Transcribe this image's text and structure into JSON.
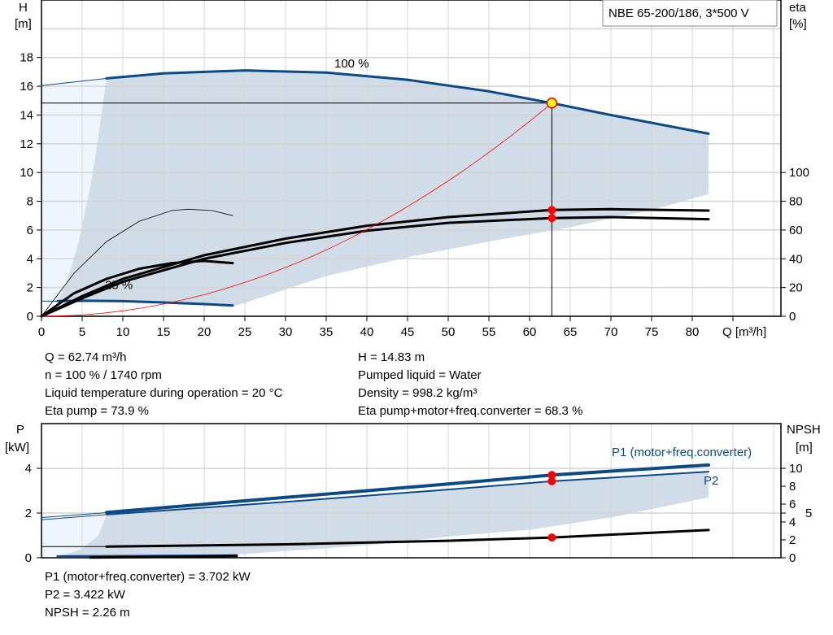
{
  "chart_data": [
    {
      "type": "line",
      "title": "NBE 65-200/186, 3*500 V",
      "xlabel": "Q [m³/h]",
      "ylabel_top": "H",
      "ylabel_unit": "[m]",
      "y2label_top": "eta",
      "y2label_unit": "[%]",
      "xlim": [
        0,
        90.9
      ],
      "ylim": [
        0,
        22
      ],
      "y2lim": [
        0,
        220
      ],
      "grid": true,
      "xticks": [
        "0",
        "5",
        "10",
        "15",
        "20",
        "25",
        "30",
        "35",
        "40",
        "45",
        "50",
        "55",
        "60",
        "65",
        "70",
        "75",
        "80"
      ],
      "yticks": [
        "0",
        "2",
        "4",
        "6",
        "8",
        "10",
        "12",
        "14",
        "16",
        "18"
      ],
      "y2ticks": [
        "0",
        "20",
        "40",
        "60",
        "80",
        "100"
      ],
      "speed_labels": [
        {
          "text": "100 %",
          "x": 36,
          "y": 17.3
        },
        {
          "text": "25 %",
          "x": 7.8,
          "y": 1.9
        }
      ],
      "series": [
        {
          "id": "h100",
          "thin": [
            [
              0,
              16.05
            ],
            [
              8,
              16.55
            ]
          ],
          "points": [
            [
              8,
              16.55
            ],
            [
              15,
              16.9
            ],
            [
              25,
              17.1
            ],
            [
              35,
              16.95
            ],
            [
              45,
              16.45
            ],
            [
              55,
              15.65
            ],
            [
              62.74,
              14.83
            ],
            [
              70,
              14.0
            ],
            [
              82,
              12.7
            ]
          ],
          "color": "#0b4a86"
        },
        {
          "id": "h25",
          "thin": [
            [
              0,
              1.05
            ],
            [
              2,
              1.05
            ]
          ],
          "points": [
            [
              2,
              1.06
            ],
            [
              5,
              1.08
            ],
            [
              10,
              1.05
            ],
            [
              15,
              0.96
            ],
            [
              20,
              0.85
            ],
            [
              23.5,
              0.75
            ]
          ],
          "color": "#0b4a86"
        },
        {
          "id": "eta-pump",
          "axis": "eta",
          "points": [
            [
              0,
              0
            ],
            [
              5,
              14
            ],
            [
              10,
              26
            ],
            [
              20,
              42.5
            ],
            [
              30,
              54
            ],
            [
              40,
              63
            ],
            [
              50,
              69
            ],
            [
              62.74,
              73.9
            ],
            [
              70,
              74.5
            ],
            [
              82,
              73.5
            ]
          ],
          "color": "#000000"
        },
        {
          "id": "eta-total",
          "axis": "eta",
          "points": [
            [
              0,
              0
            ],
            [
              5,
              12.5
            ],
            [
              10,
              24
            ],
            [
              20,
              40
            ],
            [
              30,
              51
            ],
            [
              40,
              59.5
            ],
            [
              50,
              65
            ],
            [
              62.74,
              68.3
            ],
            [
              70,
              69
            ],
            [
              82,
              67.5
            ]
          ],
          "color": "#000000"
        },
        {
          "id": "eta-pump-25",
          "axis": "eta",
          "thin": true,
          "points": [
            [
              0,
              0
            ],
            [
              4,
              30
            ],
            [
              8,
              52
            ],
            [
              12,
              66
            ],
            [
              16,
              73.5
            ],
            [
              18,
              74.5
            ],
            [
              21,
              73.5
            ],
            [
              23.5,
              70
            ]
          ],
          "color": "#000000"
        },
        {
          "id": "eta-total-25",
          "axis": "eta",
          "points": [
            [
              0,
              0
            ],
            [
              4,
              16
            ],
            [
              8,
              26
            ],
            [
              12,
              33
            ],
            [
              16,
              37
            ],
            [
              20,
              38.5
            ],
            [
              23.5,
              37
            ]
          ],
          "color": "#000000"
        },
        {
          "id": "system-curve",
          "points": "parabola",
          "color": "#ff0000"
        }
      ],
      "range_area": [
        [
          8,
          16.55
        ],
        [
          15,
          16.9
        ],
        [
          25,
          17.1
        ],
        [
          35,
          16.95
        ],
        [
          45,
          16.45
        ],
        [
          55,
          15.65
        ],
        [
          62.74,
          14.83
        ],
        [
          70,
          14.0
        ],
        [
          82,
          12.7
        ],
        [
          82,
          8.5
        ],
        [
          75,
          7.4
        ],
        [
          65,
          6.2
        ],
        [
          55,
          5.2
        ],
        [
          45,
          4.1
        ],
        [
          35,
          2.8
        ],
        [
          24,
          0.75
        ],
        [
          20,
          0.85
        ],
        [
          15,
          0.96
        ],
        [
          10,
          1.05
        ],
        [
          5,
          1.08
        ],
        [
          2,
          1.06
        ],
        [
          3,
          2.2
        ],
        [
          4.5,
          5
        ],
        [
          6,
          9
        ],
        [
          7,
          12.5
        ],
        [
          7.6,
          15
        ],
        [
          8,
          16.55
        ]
      ],
      "light_area": [
        [
          0,
          16.05
        ],
        [
          8,
          16.55
        ],
        [
          7.6,
          15
        ],
        [
          7,
          12.5
        ],
        [
          6,
          9
        ],
        [
          4.5,
          5
        ],
        [
          3,
          2.2
        ],
        [
          2,
          1.06
        ],
        [
          0,
          1.05
        ]
      ],
      "duty_point": {
        "Q": 62.74,
        "H": 14.83,
        "eta_pump": 73.9,
        "eta_total": 68.3
      },
      "colors": {
        "curve": "#0b4a86",
        "area": "#d0dce8",
        "light_area": "#eef5fc",
        "marker": "#ff0000",
        "duty_marker": "#ffff00"
      }
    },
    {
      "type": "line",
      "ylabel_top": "P",
      "ylabel_unit": "[kW]",
      "y2label_top": "NPSH",
      "y2label_unit": "[m]",
      "xlim": [
        0,
        90.9
      ],
      "ylim": [
        0,
        6
      ],
      "y2lim": [
        0,
        15
      ],
      "grid": true,
      "yticks": [
        "0",
        "2",
        "4"
      ],
      "y2ticks": [
        "0",
        "2",
        "4",
        "5",
        "6",
        "8",
        "10"
      ],
      "series": [
        {
          "id": "p1",
          "name": "P1 (motor+freq.converter)",
          "thin": [
            [
              0,
              1.8
            ],
            [
              8,
              2.02
            ]
          ],
          "points": [
            [
              8,
              2.03
            ],
            [
              30,
              2.7
            ],
            [
              50,
              3.3
            ],
            [
              62.74,
              3.702
            ],
            [
              82,
              4.15
            ]
          ],
          "color": "#0b4a86"
        },
        {
          "id": "p2",
          "name": "P2",
          "thin": [
            [
              0,
              1.7
            ],
            [
              8,
              1.93
            ]
          ],
          "points": [
            [
              8,
              1.93
            ],
            [
              30,
              2.5
            ],
            [
              50,
              3.05
            ],
            [
              62.74,
              3.422
            ],
            [
              82,
              3.85
            ]
          ],
          "color": "#0b4a86"
        },
        {
          "id": "npsh",
          "axis": "npsh",
          "thin": [
            [
              0,
              1.25
            ],
            [
              8,
              1.25
            ]
          ],
          "points": [
            [
              8,
              1.25
            ],
            [
              30,
              1.5
            ],
            [
              50,
              1.9
            ],
            [
              62.74,
              2.26
            ],
            [
              82,
              3.1
            ]
          ],
          "color": "#000000"
        },
        {
          "id": "p25",
          "points": [
            [
              2,
              0.06
            ],
            [
              24,
              0.1
            ]
          ],
          "color": "#0b4a86"
        },
        {
          "id": "npsh25",
          "axis": "npsh",
          "points": [
            [
              6,
              0.02
            ],
            [
              24,
              0.2
            ]
          ],
          "color": "#000000"
        }
      ],
      "range_area": [
        [
          8,
          1.93
        ],
        [
          30,
          2.5
        ],
        [
          50,
          3.05
        ],
        [
          62.74,
          3.422
        ],
        [
          82,
          3.85
        ],
        [
          82,
          2.7
        ],
        [
          70,
          1.8
        ],
        [
          60,
          1.25
        ],
        [
          50,
          0.95
        ],
        [
          40,
          0.55
        ],
        [
          30,
          0.3
        ],
        [
          24,
          0.15
        ],
        [
          15,
          0.08
        ],
        [
          2,
          0.05
        ],
        [
          5,
          0.4
        ],
        [
          7,
          1.0
        ],
        [
          8,
          1.93
        ]
      ],
      "light_area": [
        [
          0,
          1.8
        ],
        [
          8,
          1.93
        ],
        [
          7,
          1.0
        ],
        [
          5,
          0.4
        ],
        [
          2,
          0.05
        ],
        [
          0,
          0.05
        ]
      ]
    }
  ],
  "info_top_left": [
    "Q = 62.74 m³/h",
    "n = 100 % / 1740 rpm",
    "Liquid temperature during operation = 20 °C",
    "Eta pump = 73.9 %"
  ],
  "info_top_right": [
    "H = 14.83 m",
    "Pumped liquid = Water",
    "Density = 998.2 kg/m³",
    "Eta pump+motor+freq.converter = 68.3 %"
  ],
  "info_bottom": [
    "P1 (motor+freq.converter) = 3.702 kW",
    "P2 = 3.422 kW",
    "NPSH = 2.26 m"
  ]
}
